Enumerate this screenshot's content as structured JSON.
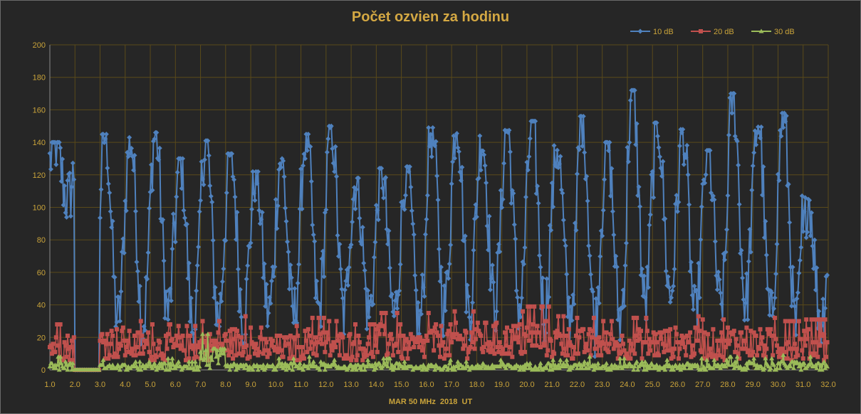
{
  "chart_data": {
    "type": "line",
    "title": "Počet ozvien za hodinu",
    "xlabel": "MAR 50 MHz  2018  UT",
    "ylabel": "",
    "xlim": [
      1.0,
      32.0
    ],
    "ylim": [
      0,
      200
    ],
    "x_ticks": [
      "1.0",
      "2.0",
      "3.0",
      "4.0",
      "5.0",
      "6.0",
      "7.0",
      "8.0",
      "9.0",
      "10.0",
      "11.0",
      "12.0",
      "13.0",
      "14.0",
      "15.0",
      "16.0",
      "17.0",
      "18.0",
      "19.0",
      "20.0",
      "21.0",
      "22.0",
      "23.0",
      "24.0",
      "25.0",
      "26.0",
      "27.0",
      "28.0",
      "29.0",
      "30.0",
      "31.0",
      "32.0"
    ],
    "y_ticks": [
      "0",
      "20",
      "40",
      "60",
      "80",
      "100",
      "120",
      "140",
      "160",
      "180",
      "200"
    ],
    "grid": true,
    "legend_position": "top-right",
    "series": [
      {
        "name": "10 dB",
        "color": "#4f81bd",
        "marker": "diamond",
        "description": "hourly counts; daily peaks near local night",
        "daily_max": [
          140,
          0,
          145,
          143,
          146,
          130,
          141,
          133,
          122,
          130,
          145,
          150,
          118,
          124,
          125,
          149,
          155,
          144,
          149,
          153,
          138,
          156,
          140,
          172,
          152,
          148,
          135,
          170,
          154,
          158,
          106
        ],
        "daily_min": [
          105,
          0,
          30,
          28,
          35,
          25,
          32,
          30,
          34,
          33,
          36,
          34,
          35,
          33,
          28,
          38,
          36,
          40,
          38,
          35,
          33,
          28,
          31,
          40,
          45,
          30,
          38,
          40,
          30,
          25,
          30
        ]
      },
      {
        "name": "20 dB",
        "color": "#c0504d",
        "marker": "square",
        "description": "hourly counts mostly 0–35",
        "daily_max": [
          28,
          0,
          34,
          30,
          28,
          27,
          30,
          33,
          26,
          27,
          32,
          30,
          28,
          35,
          28,
          35,
          36,
          37,
          36,
          39,
          33,
          32,
          30,
          32,
          33,
          33,
          31,
          35,
          32,
          30,
          31
        ]
      },
      {
        "name": "30 dB",
        "color": "#9bbb59",
        "marker": "triangle",
        "description": "hourly counts mostly 0–10",
        "daily_max": [
          8,
          0,
          6,
          5,
          7,
          5,
          22,
          6,
          5,
          7,
          8,
          6,
          6,
          7,
          5,
          6,
          5,
          6,
          6,
          7,
          6,
          8,
          7,
          8,
          6,
          7,
          6,
          8,
          7,
          9,
          8
        ]
      }
    ]
  }
}
